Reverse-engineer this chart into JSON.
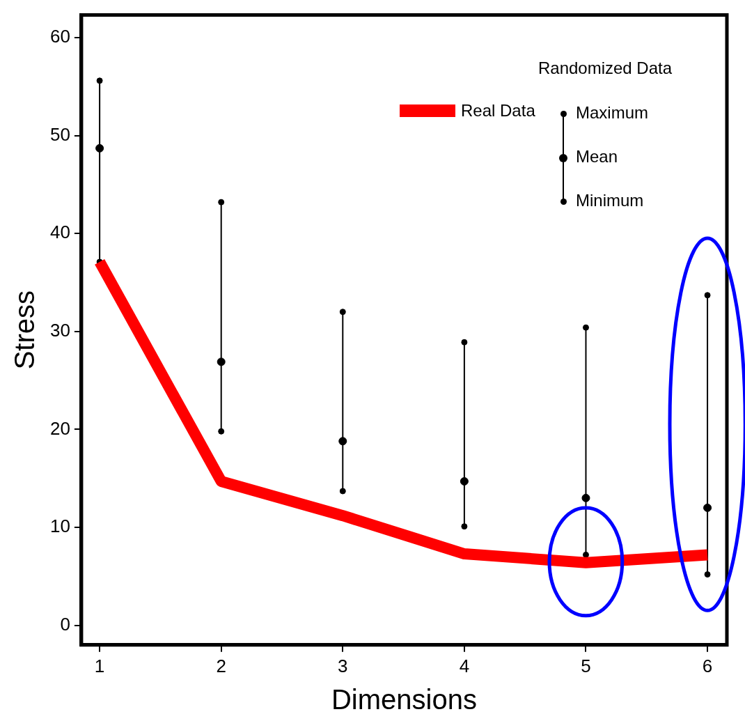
{
  "chart_data": {
    "type": "line",
    "xlabel": "Dimensions",
    "ylabel": "Stress",
    "x": [
      1,
      2,
      3,
      4,
      5,
      6
    ],
    "xlim": [
      0.85,
      6.16
    ],
    "xticks": [
      1,
      2,
      3,
      4,
      5,
      6
    ],
    "ylim": [
      -2,
      62.3
    ],
    "yticks": [
      0,
      10,
      20,
      30,
      40,
      50,
      60
    ],
    "grid": false,
    "legend": "top right",
    "legend_title": "Randomized Data",
    "series": [
      {
        "name": "Real Data",
        "type": "line",
        "color": "#ff0000",
        "marker": "none",
        "values": [
          37.1,
          14.7,
          11.2,
          7.3,
          6.4,
          7.2
        ]
      },
      {
        "name": "Maximum",
        "type": "scatter",
        "color": "#000000",
        "marker": "circle",
        "values": [
          55.6,
          43.2,
          32.0,
          28.9,
          30.4,
          33.7
        ]
      },
      {
        "name": "Mean",
        "type": "scatter",
        "color": "#000000",
        "marker": "circle",
        "values": [
          48.7,
          26.9,
          18.8,
          14.7,
          13.0,
          12.0
        ],
        "errors": [
          [
            37.1,
            55.6
          ],
          [
            19.8,
            43.2
          ],
          [
            13.7,
            32.0
          ],
          [
            10.1,
            28.9
          ],
          [
            7.2,
            30.4
          ],
          [
            5.2,
            33.7
          ]
        ]
      },
      {
        "name": "Minimum",
        "type": "scatter",
        "color": "#000000",
        "marker": "circle",
        "values": [
          37.1,
          19.8,
          13.7,
          10.1,
          7.2,
          5.2
        ]
      }
    ]
  }
}
